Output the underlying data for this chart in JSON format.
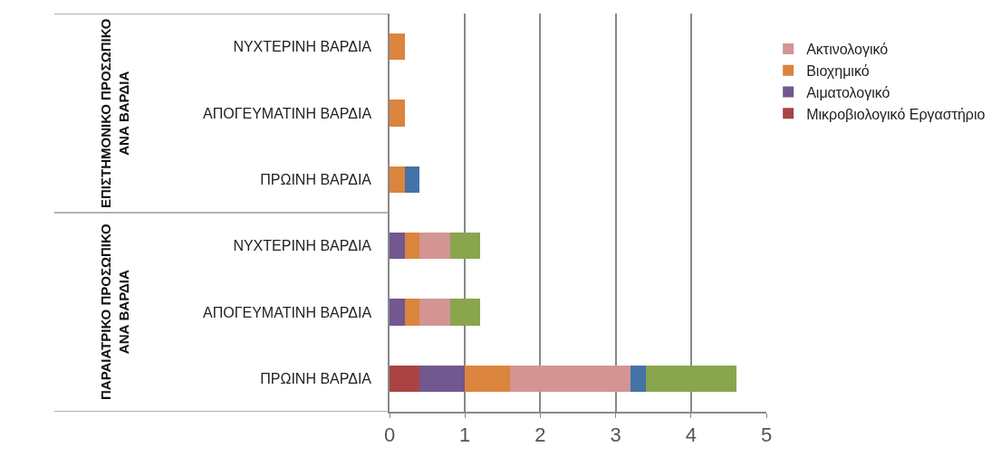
{
  "chart_data": {
    "type": "bar",
    "orientation": "horizontal",
    "stacked": true,
    "categories": [
      "ΝΥΧΤΕΡΙΝΗ ΒΑΡΔΙΑ",
      "ΑΠΟΓΕΥΜΑΤΙΝΗ ΒΑΡΔΙΑ",
      "ΠΡΩΙΝΗ ΒΑΡΔΙΑ",
      "ΝΥΧΤΕΡΙΝΗ ΒΑΡΔΙΑ",
      "ΑΠΟΓΕΥΜΑΤΙΝΗ ΒΑΡΔΙΑ",
      "ΠΡΩΙΝΗ ΒΑΡΔΙΑ"
    ],
    "series": [
      {
        "name": "Μικροβιολογικό Εργαστήριο",
        "color": "#a94442",
        "values": [
          null,
          null,
          null,
          null,
          null,
          0.4
        ]
      },
      {
        "name": "Αιματολογικό",
        "color": "#71588f",
        "values": [
          null,
          null,
          null,
          0.2,
          0.2,
          0.6
        ]
      },
      {
        "name": "Βιοχημικό",
        "color": "#db843d",
        "values": [
          0.2,
          0.2,
          0.2,
          0.2,
          0.2,
          0.6
        ]
      },
      {
        "name": "Ακτινολογικό",
        "color": "#d39494",
        "values": [
          null,
          null,
          null,
          0.4,
          0.4,
          1.6
        ]
      },
      {
        "color": "#4572a7",
        "values": [
          null,
          null,
          0.2,
          null,
          null,
          0.2
        ]
      },
      {
        "color": "#89a54e",
        "values": [
          null,
          null,
          null,
          0.4,
          0.4,
          1.2
        ]
      }
    ],
    "annotations": [
      "ΕΠΙΣΤΗΜΟΝΙΚΟ ΠΡΟΣΩΠΙΚΟ ΑΝΑ ΒΑΡΔΙΑ",
      "ΠΑΡΑΙΑΤΡΙΚΟ ΠΡΟΣΩΠΙΚΟ ΑΝΑ ΒΑΡΔΙΑ"
    ],
    "xlim": [
      0,
      5
    ],
    "xticks": [
      0,
      1,
      2,
      3,
      4,
      5
    ],
    "grid": "x",
    "legend": "right"
  }
}
